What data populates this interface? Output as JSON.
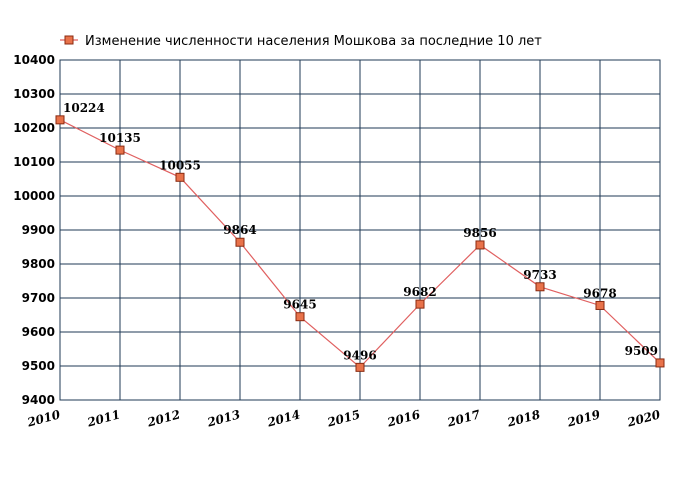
{
  "colors": {
    "background": "#ffffff",
    "plot_background": "#ffffff",
    "grid": "#1f3a55",
    "series_line": "#e06060",
    "marker_fill": "#e8724a",
    "marker_stroke": "#8a2a10"
  },
  "chart_data": {
    "type": "line",
    "title": "",
    "xlabel": "",
    "ylabel": "",
    "x": [
      "2010",
      "2011",
      "2012",
      "2013",
      "2014",
      "2015",
      "2016",
      "2017",
      "2018",
      "2019",
      "2020"
    ],
    "series": [
      {
        "name": "Изменение численности населения Мошкова за последние 10 лет",
        "values": [
          10224,
          10135,
          10055,
          9864,
          9645,
          9496,
          9682,
          9856,
          9733,
          9678,
          9509
        ]
      }
    ],
    "ylim": [
      9400,
      10400
    ],
    "yticks": [
      9400,
      9500,
      9600,
      9700,
      9800,
      9900,
      10000,
      10100,
      10200,
      10300,
      10400
    ],
    "grid": true,
    "legend_position": "top-left",
    "marker": "square",
    "data_labels": true
  }
}
